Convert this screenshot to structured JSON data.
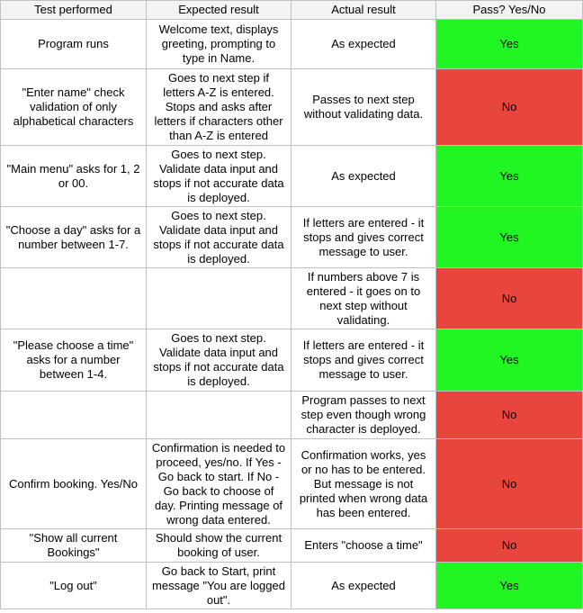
{
  "table": {
    "headers": [
      "Test performed",
      "Expected result",
      "Actual result",
      "Pass? Yes/No"
    ],
    "rows": [
      {
        "test": "Program runs",
        "expected": "Welcome text, displays greeting, prompting to type in Name.",
        "actual": "As expected",
        "pass": "Yes"
      },
      {
        "test": "\"Enter name\" check validation of only alphabetical characters",
        "expected": "Goes to next step if letters A-Z is entered. Stops and asks after letters if characters other than A-Z is entered",
        "actual": "Passes to next step without validating data.",
        "pass": "No"
      },
      {
        "test": "\"Main menu\" asks for 1, 2 or 00.",
        "expected": "Goes to next step. Validate data input and stops if not accurate data is deployed.",
        "actual": "As expected",
        "pass": "Yes"
      },
      {
        "test": "\"Choose a day\" asks for a number between 1-7.",
        "expected": "Goes to next step. Validate data input and stops if not accurate data is deployed.",
        "actual": "If letters are entered - it stops and gives correct message to user.",
        "pass": "Yes"
      },
      {
        "test": "",
        "expected": "",
        "actual": "If numbers above 7 is entered - it goes on to next step without validating.",
        "pass": "No"
      },
      {
        "test": "\"Please choose a time\" asks for a number between 1-4.",
        "expected": "Goes to next step. Validate data input and stops if not accurate data is deployed.",
        "actual": "If letters are entered - it stops and gives correct message to user.",
        "pass": "Yes"
      },
      {
        "test": "",
        "expected": "",
        "actual": "Program passes to next step even though wrong character is deployed.",
        "pass": "No"
      },
      {
        "test": "Confirm booking. Yes/No",
        "expected": "Confirmation is needed to proceed, yes/no. If Yes - Go back to start. If No - Go back to choose of day. Printing message of wrong data entered.",
        "actual": "Confirmation works, yes or no has to be entered. But message is not printed when wrong data has been entered.",
        "pass": "No"
      },
      {
        "test": "\"Show all current Bookings\"",
        "expected": "Should show the current booking of user.",
        "actual": "Enters \"choose a time\"",
        "pass": "No"
      },
      {
        "test": "\"Log out\"",
        "expected": "Go back to Start, print message \"You are logged out\".",
        "actual": "As expected",
        "pass": "Yes"
      }
    ]
  },
  "colors": {
    "yes": "#22f622",
    "no": "#e8453c",
    "header_bg": "#f3f3f3",
    "grid": "#c0c0c0"
  }
}
